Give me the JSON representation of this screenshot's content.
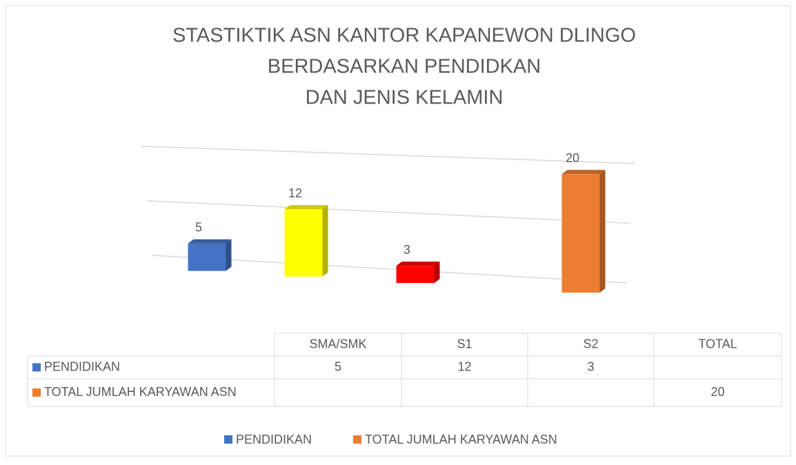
{
  "chart_data": {
    "type": "bar3d",
    "title": [
      "STASTIKTIK ASN KANTOR KAPANEWON DLINGO",
      "BERDASARKAN PENDIDKAN",
      "DAN JENIS KELAMIN"
    ],
    "categories": [
      "SMA/SMK",
      "S1",
      "S2",
      "TOTAL"
    ],
    "series": [
      {
        "name": "PENDIDIKAN",
        "color": "#4472c4",
        "point_colors": [
          "#4472c4",
          "#ffff00",
          "#ff0000",
          null
        ],
        "values": [
          5,
          12,
          3,
          null
        ]
      },
      {
        "name": "TOTAL JUMLAH KARYAWAN ASN",
        "color": "#ed7d31",
        "values": [
          null,
          null,
          null,
          20
        ]
      }
    ],
    "ylim": [
      0,
      20
    ],
    "yticks": [
      0,
      10,
      20
    ],
    "grid": true,
    "show_tick_labels": false,
    "legend": "bottom",
    "data_table": true
  }
}
